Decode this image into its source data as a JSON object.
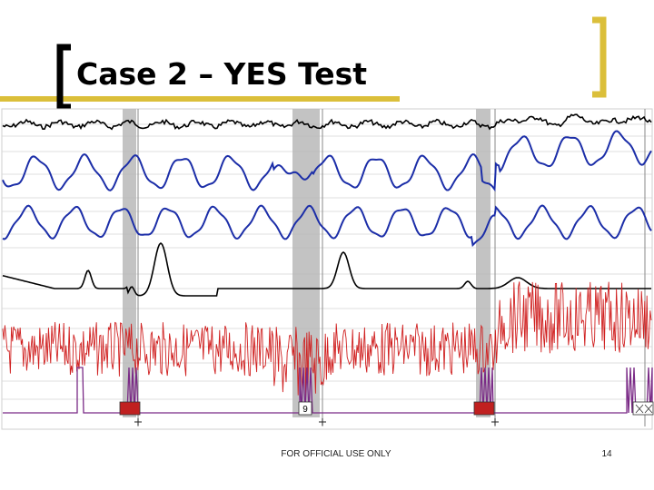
{
  "slide": {
    "title": "Case 2 – YES Test",
    "footer": "FOR OFFICIAL USE ONLY",
    "page_number": "14"
  },
  "colors": {
    "accent_gold": "#DBBF3A",
    "brace_black": "#000000",
    "pneumo": "#000000",
    "respiration": "#1C2EA8",
    "eda": "#000000",
    "cardio": "#D02020",
    "motion": "#7A2A86",
    "marker_bar": "#B8B8B8",
    "marker_label_bg": "#C02020"
  },
  "chart_data": {
    "type": "line",
    "description_of_axes": "",
    "channels": [
      {
        "name": "",
        "color": "#000000",
        "pattern": "small-noisy-oscillation",
        "baseline_row": 1
      },
      {
        "name": "",
        "color": "#1C2EA8",
        "pattern": "large-periodic-oscillation",
        "baseline_row": 2
      },
      {
        "name": "",
        "color": "#1C2EA8",
        "pattern": "large-periodic-oscillation",
        "baseline_row": 3
      },
      {
        "name": "",
        "color": "#000000",
        "pattern": "baseline-with-peaks",
        "baseline_row": 4
      },
      {
        "name": "",
        "color": "#D02020",
        "pattern": "high-frequency-noise",
        "baseline_row": 5
      },
      {
        "name": "",
        "color": "#7A2A86",
        "pattern": "event-pulses",
        "baseline_row": 6
      }
    ],
    "question_markers": [
      {
        "label": "",
        "highlighted": true
      },
      {
        "label": "9",
        "highlighted": false
      },
      {
        "label": "",
        "highlighted": true
      },
      {
        "label": "",
        "highlighted": false
      }
    ],
    "grid": true,
    "legend": "none"
  }
}
